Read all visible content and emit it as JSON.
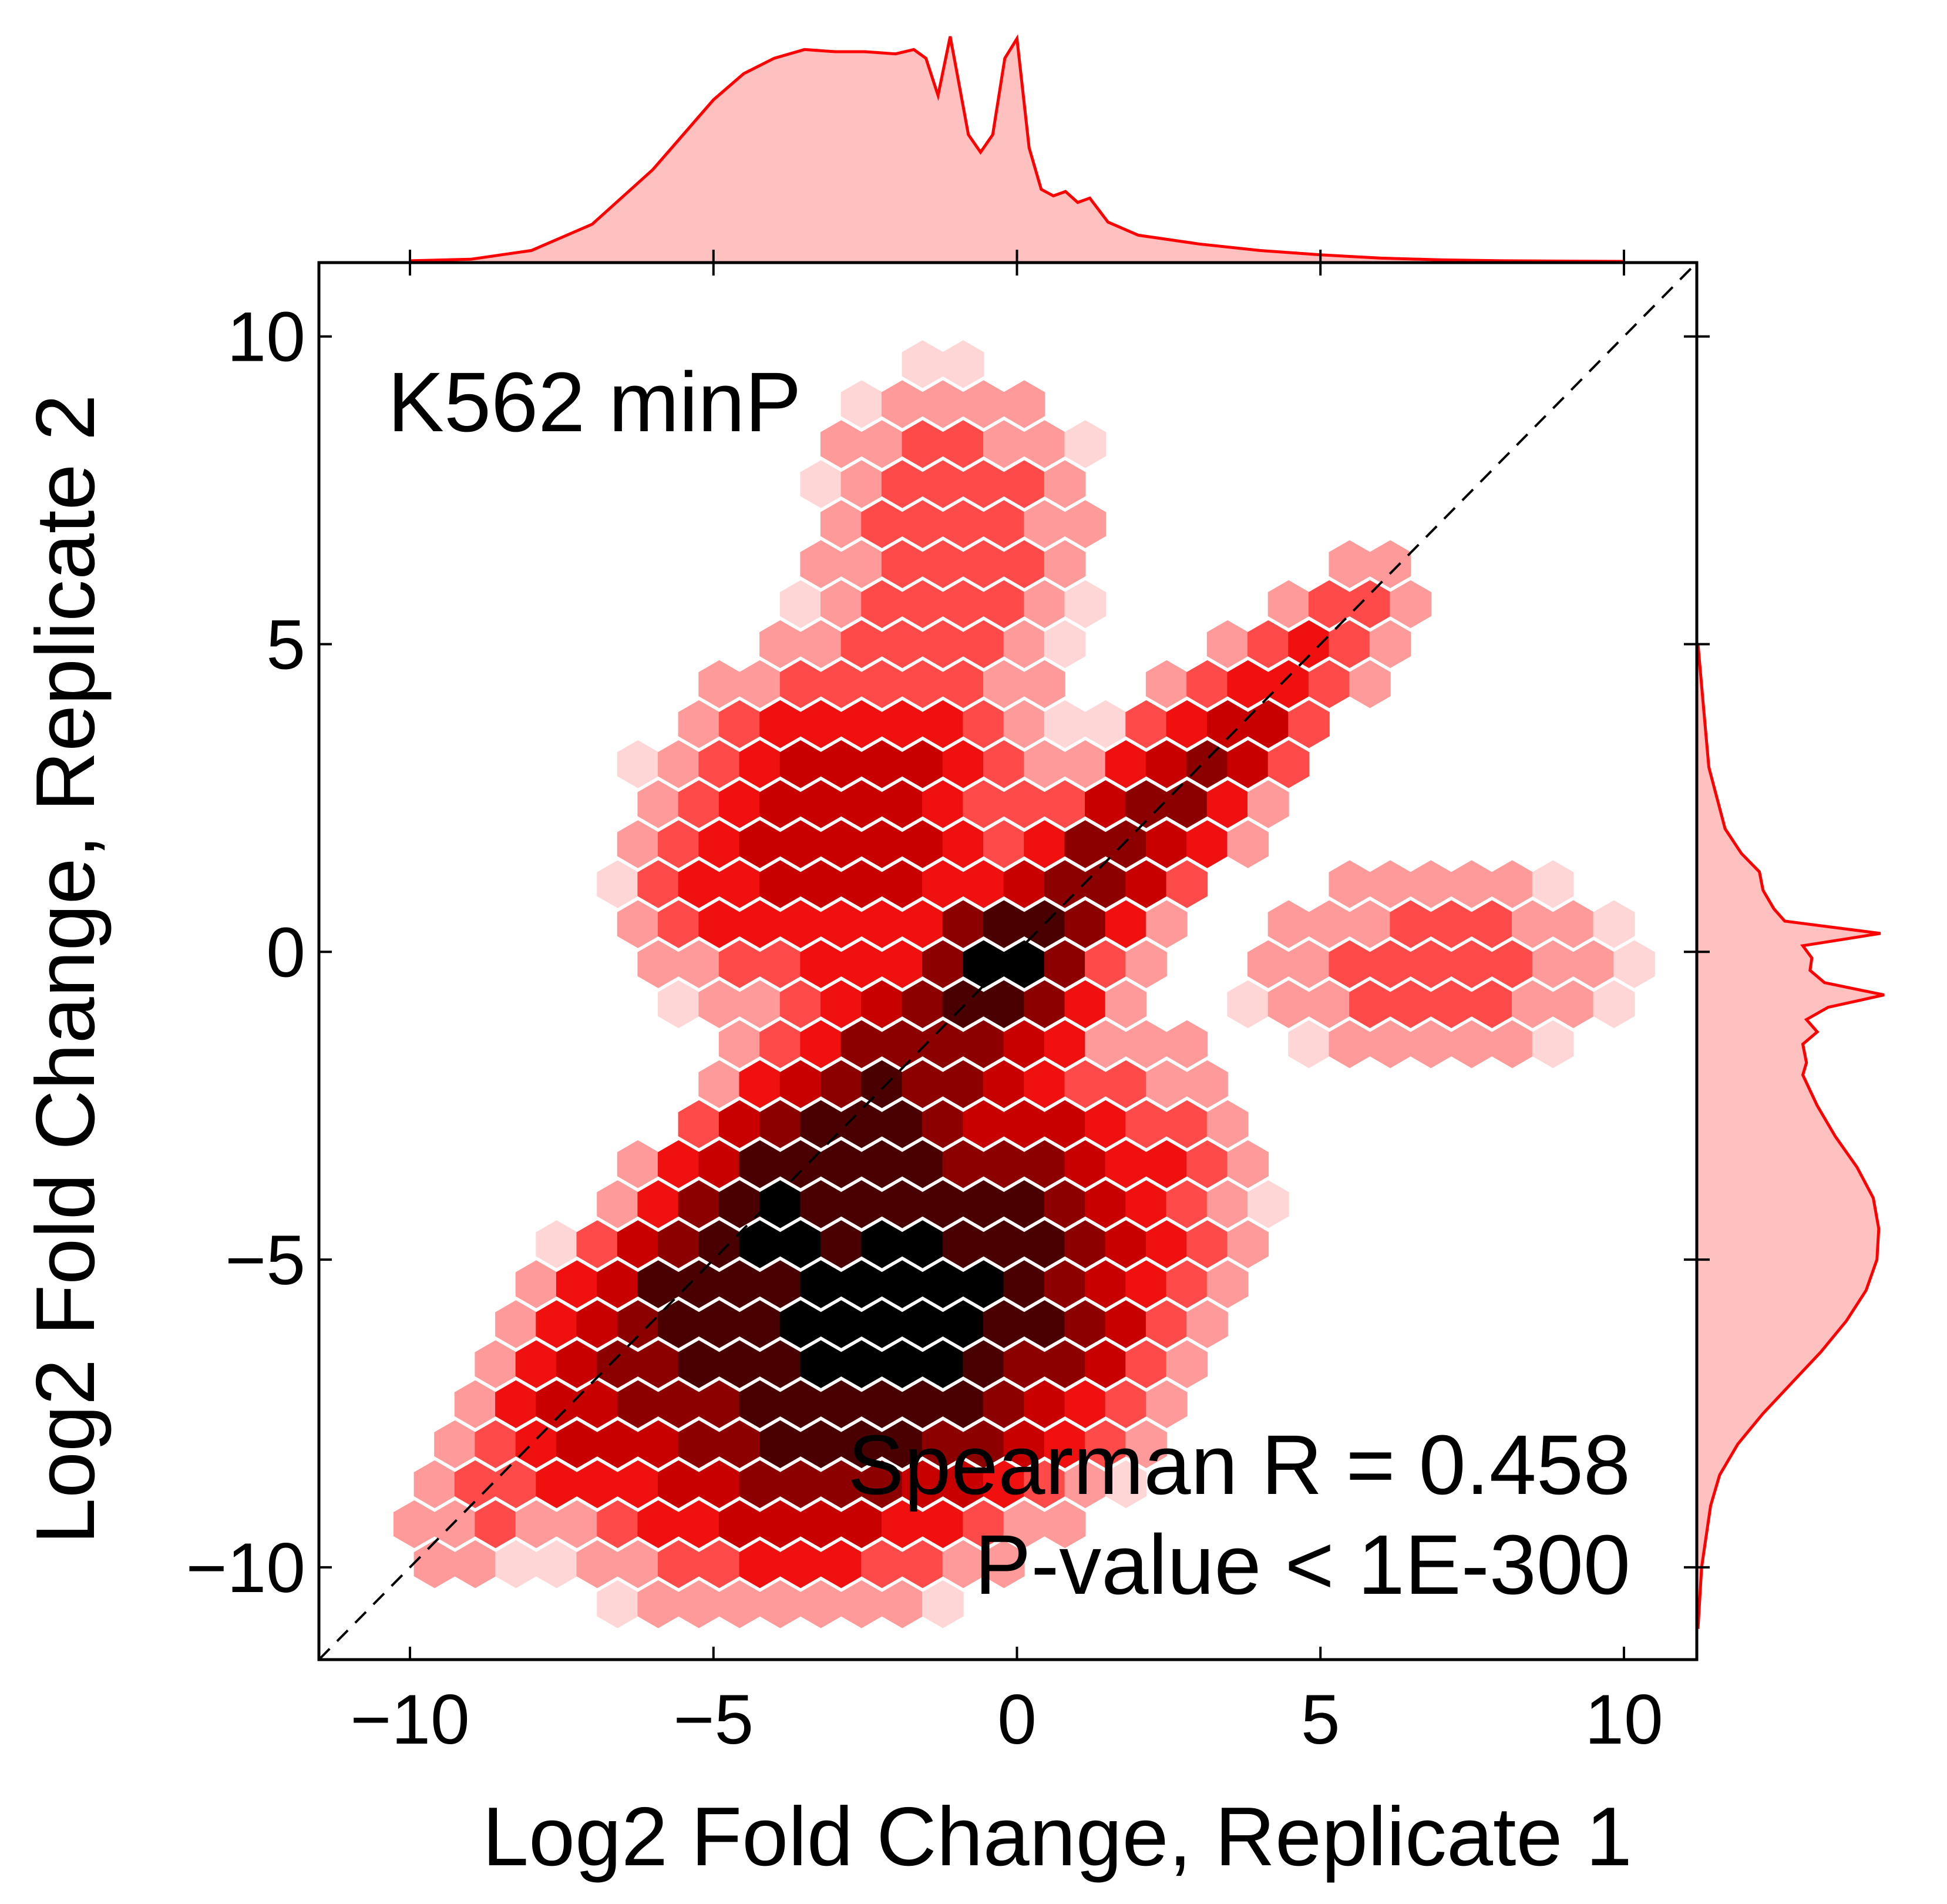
{
  "chart_data": {
    "type": "hexbin-jointplot",
    "annotation": "K562 minP",
    "stats": {
      "line1": "Spearman R = 0.458",
      "line2": "P-value < 1E-300"
    },
    "xlabel": "Log2 Fold Change, Replicate 1",
    "ylabel": "Log2 Fold Change, Replicate 2",
    "xlim": [
      -11.5,
      11.2
    ],
    "ylim": [
      -11.5,
      11.2
    ],
    "xticks": [
      -10,
      -5,
      0,
      5,
      10
    ],
    "yticks": [
      -10,
      -5,
      0,
      5,
      10
    ],
    "xtick_labels": [
      "−10",
      "−5",
      "0",
      "5",
      "10"
    ],
    "ytick_labels": [
      "−10",
      "−5",
      "0",
      "5",
      "10"
    ],
    "reference_line": {
      "type": "dashed",
      "slope": 1,
      "intercept": 0,
      "color": "#000000"
    },
    "colormap": [
      "#ffffff",
      "#ffd6d6",
      "#ff9a9a",
      "#ff4a4a",
      "#f01010",
      "#c80000",
      "#8c0000",
      "#4a0000",
      "#000000"
    ],
    "hex_grid": {
      "x_step": 0.67,
      "y_step": 0.65
    },
    "density_model": [
      {
        "weight": 1.0,
        "mean": [
          -2.0,
          -6.0
        ],
        "sd": [
          2.2,
          1.9
        ],
        "rho": 0.35
      },
      {
        "weight": 0.55,
        "mean": [
          -4.0,
          -4.0
        ],
        "sd": [
          2.4,
          2.4
        ],
        "rho": 0.9
      },
      {
        "weight": 0.7,
        "mean": [
          -0.2,
          -0.3
        ],
        "sd": [
          0.6,
          0.6
        ],
        "rho": 0.0
      },
      {
        "weight": 0.35,
        "mean": [
          2.0,
          2.0
        ],
        "sd": [
          2.0,
          2.0
        ],
        "rho": 0.9
      },
      {
        "weight": 0.3,
        "mean": [
          -3.0,
          2.0
        ],
        "sd": [
          1.6,
          1.5
        ],
        "rho": 0.2
      },
      {
        "weight": 0.08,
        "mean": [
          7.0,
          -0.2
        ],
        "sd": [
          2.0,
          1.0
        ],
        "rho": 0.0
      },
      {
        "weight": 0.08,
        "mean": [
          -1.0,
          7.0
        ],
        "sd": [
          1.5,
          1.6
        ],
        "rho": 0.0
      }
    ],
    "marginal_x": {
      "x": [
        -10,
        -9,
        -8,
        -7,
        -6,
        -5.5,
        -5,
        -4.5,
        -4,
        -3.5,
        -3,
        -2.5,
        -2,
        -1.7,
        -1.5,
        -1.3,
        -1.1,
        -1.0,
        -0.8,
        -0.6,
        -0.4,
        -0.2,
        0,
        0.2,
        0.4,
        0.6,
        0.8,
        1.0,
        1.2,
        1.5,
        2,
        3,
        4,
        5,
        6,
        7,
        8,
        10
      ],
      "density": [
        0.003,
        0.01,
        0.05,
        0.17,
        0.42,
        0.58,
        0.74,
        0.86,
        0.93,
        0.97,
        0.96,
        0.96,
        0.95,
        0.97,
        0.93,
        0.76,
        1.03,
        0.88,
        0.58,
        0.5,
        0.58,
        0.93,
        1.02,
        0.52,
        0.33,
        0.3,
        0.32,
        0.27,
        0.29,
        0.18,
        0.12,
        0.08,
        0.05,
        0.03,
        0.015,
        0.007,
        0.003,
        0.0
      ],
      "color": "#ff0000",
      "fill": "#ffc0c0"
    },
    "marginal_y": {
      "y": [
        -11,
        -10,
        -9,
        -8.5,
        -8,
        -7.5,
        -7,
        -6.5,
        -6,
        -5.5,
        -5,
        -4.5,
        -4,
        -3.5,
        -3,
        -2.5,
        -2,
        -1.8,
        -1.5,
        -1.3,
        -1.1,
        -0.9,
        -0.7,
        -0.5,
        -0.3,
        -0.1,
        0.1,
        0.3,
        0.5,
        0.7,
        1.0,
        1.3,
        1.6,
        2,
        3,
        4,
        5
      ],
      "density": [
        0.0,
        0.02,
        0.07,
        0.12,
        0.22,
        0.36,
        0.52,
        0.68,
        0.82,
        0.93,
        0.99,
        1.0,
        0.97,
        0.88,
        0.76,
        0.66,
        0.58,
        0.6,
        0.58,
        0.66,
        0.6,
        0.72,
        1.03,
        0.7,
        0.62,
        0.63,
        0.58,
        1.01,
        0.48,
        0.42,
        0.36,
        0.34,
        0.24,
        0.15,
        0.06,
        0.03,
        0.0
      ],
      "color": "#ff0000",
      "fill": "#ffc0c0"
    }
  }
}
